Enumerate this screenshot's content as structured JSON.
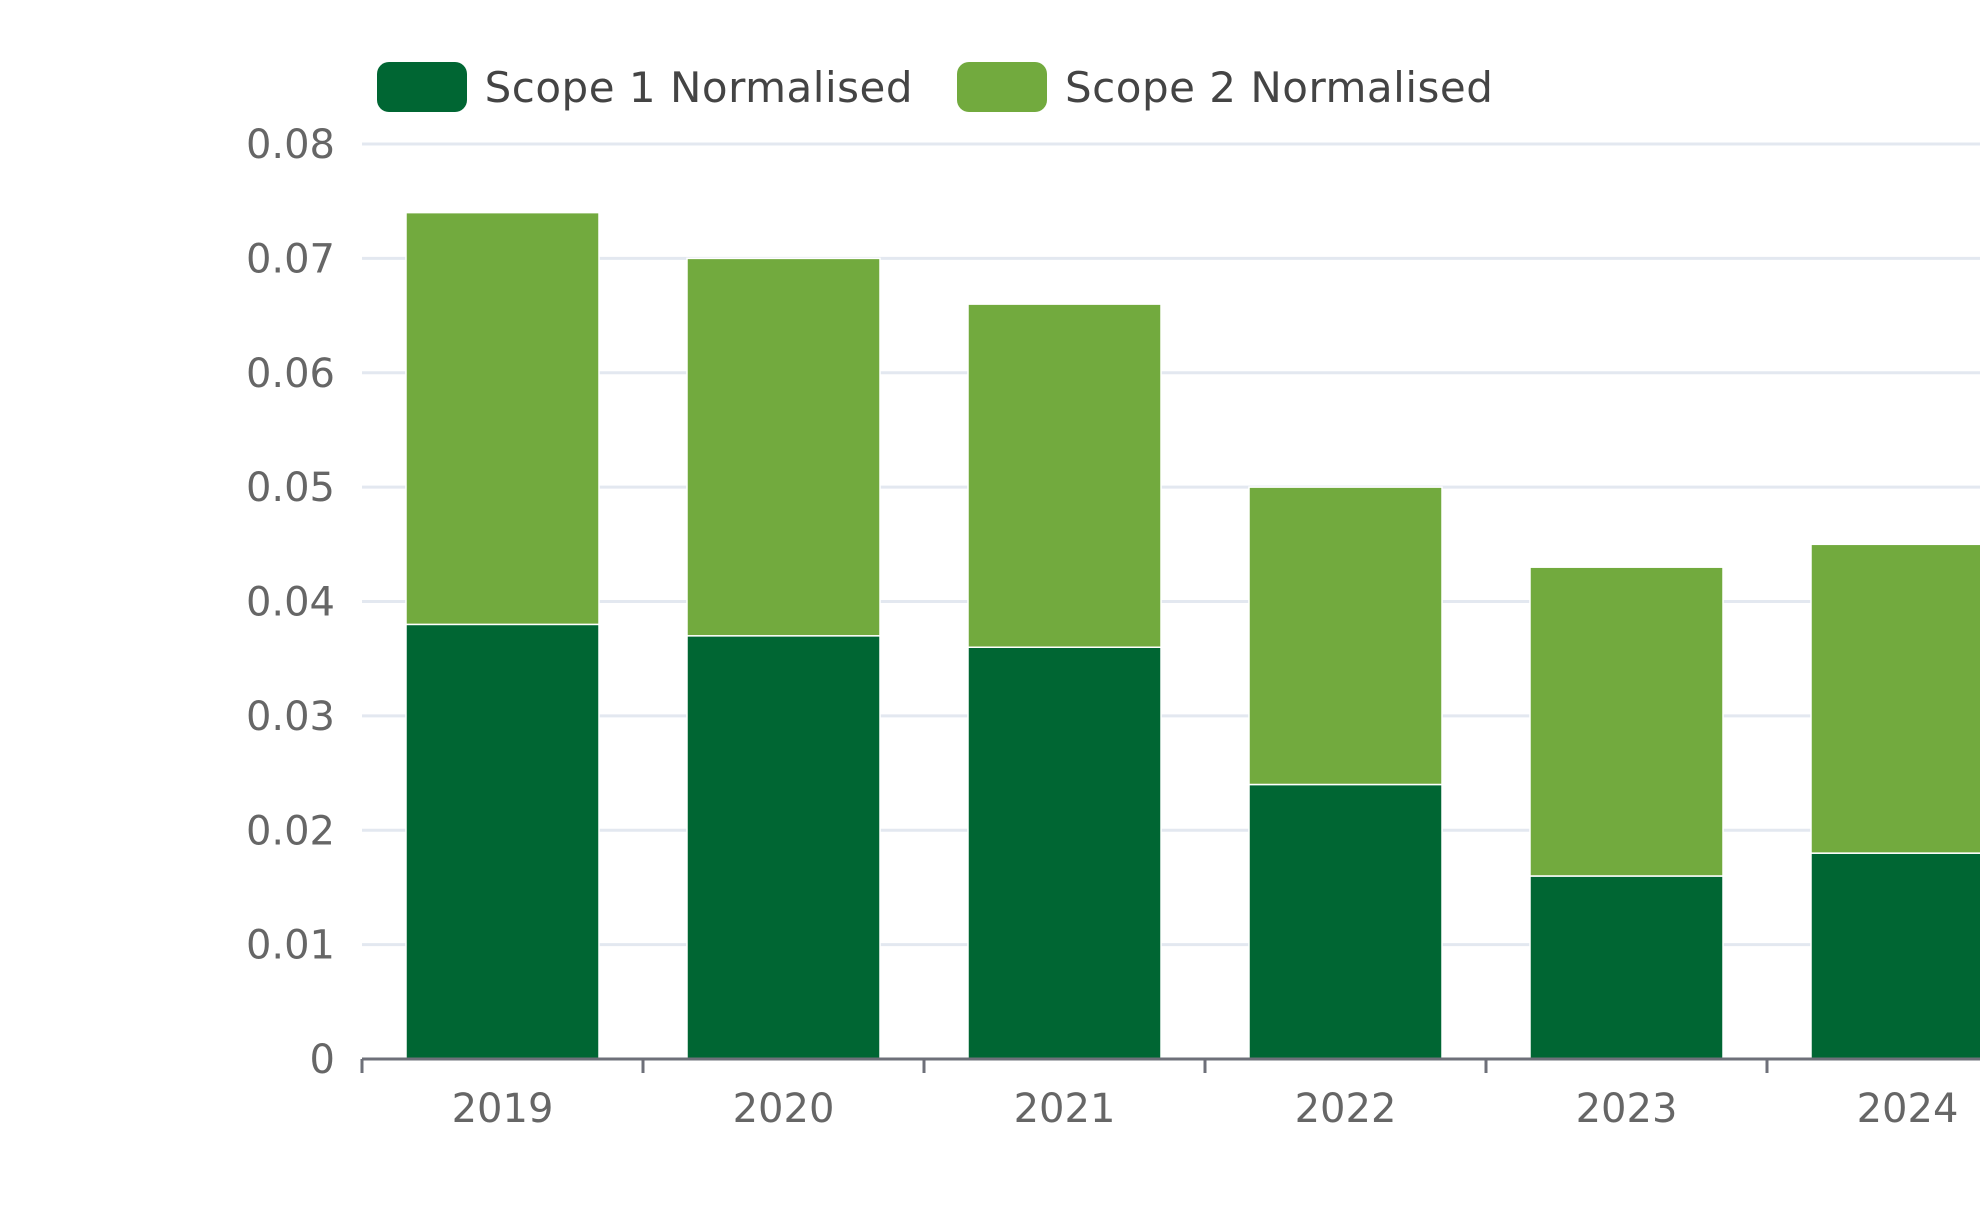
{
  "chart_data": {
    "type": "bar",
    "stacked": true,
    "categories": [
      "2019",
      "2020",
      "2021",
      "2022",
      "2023",
      "2024"
    ],
    "series": [
      {
        "name": "Scope 1 Normalised",
        "color": "#006633",
        "values": [
          0.038,
          0.037,
          0.036,
          0.024,
          0.016,
          0.018
        ]
      },
      {
        "name": "Scope 2 Normalised",
        "color": "#72AA3E",
        "values": [
          0.036,
          0.033,
          0.03,
          0.026,
          0.027,
          0.027
        ]
      }
    ],
    "yticks": [
      "0",
      "0.01",
      "0.02",
      "0.03",
      "0.04",
      "0.05",
      "0.06",
      "0.07",
      "0.08"
    ],
    "ylim": [
      0,
      0.08
    ],
    "grid": true,
    "legend_position": "top"
  }
}
